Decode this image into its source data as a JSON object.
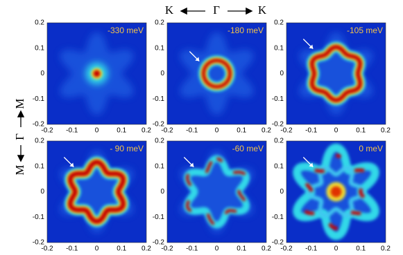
{
  "header": {
    "left": "K",
    "center": "Γ",
    "right": "K"
  },
  "side": {
    "top": "M",
    "center": "Γ",
    "bottom": "M"
  },
  "panels": [
    {
      "label": "-330 meV"
    },
    {
      "label": "-180 meV"
    },
    {
      "label": "-105 meV"
    },
    {
      "label": "- 90 meV"
    },
    {
      "label": "-60 meV"
    },
    {
      "label": "0 meV"
    }
  ],
  "axes": {
    "xticks": [
      -0.2,
      -0.1,
      0,
      0.1,
      0.2
    ],
    "yticks": [
      0.2,
      0.1,
      0,
      -0.1,
      -0.2
    ]
  }
}
